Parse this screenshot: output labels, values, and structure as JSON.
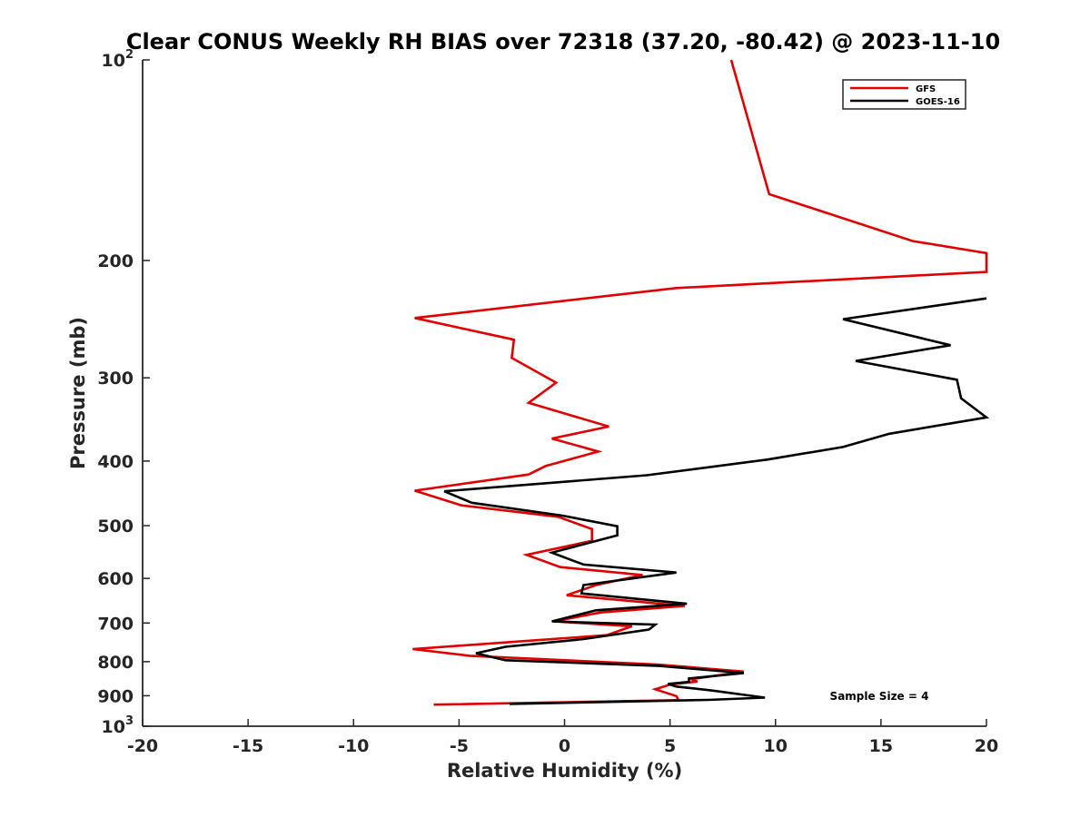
{
  "chart_data": {
    "type": "line",
    "title": "Clear CONUS Weekly RH BIAS over 72318 (37.20, -80.42) @ 2023-11-10",
    "xlabel": "Relative Humidity (%)",
    "ylabel": "Pressure (mb)",
    "xlim": [
      -20,
      20
    ],
    "ylim": [
      100,
      1000
    ],
    "yscale": "log",
    "y_reversed": true,
    "x_ticks": [
      "-20",
      "-15",
      "-10",
      "-5",
      "0",
      "5",
      "10",
      "15",
      "20"
    ],
    "y_ticks": [
      {
        "value": 100,
        "base": "10",
        "exp": "2"
      },
      {
        "value": 200,
        "text": "200"
      },
      {
        "value": 300,
        "text": "300"
      },
      {
        "value": 400,
        "text": "400"
      },
      {
        "value": 500,
        "text": "500"
      },
      {
        "value": 600,
        "text": "600"
      },
      {
        "value": 700,
        "text": "700"
      },
      {
        "value": 800,
        "text": "800"
      },
      {
        "value": 900,
        "text": "900"
      },
      {
        "value": 1000,
        "base": "10",
        "exp": "3"
      }
    ],
    "legend": {
      "placement": "top-right"
    },
    "annotation": "Sample Size = 4",
    "series": [
      {
        "name": "GFS",
        "color": "#e00000",
        "points": [
          [
            7.9,
            100
          ],
          [
            9.7,
            159
          ],
          [
            16.5,
            187
          ],
          [
            20,
            195
          ],
          [
            20,
            208
          ],
          [
            5.3,
            220
          ],
          [
            -7.1,
            244
          ],
          [
            -2.4,
            263
          ],
          [
            -2.5,
            280
          ],
          [
            -0.4,
            305
          ],
          [
            -1.7,
            327
          ],
          [
            2.1,
            355
          ],
          [
            -0.6,
            370
          ],
          [
            1.6,
            387
          ],
          [
            -0.9,
            407
          ],
          [
            -1.7,
            419
          ],
          [
            -7.1,
            443
          ],
          [
            -4.9,
            466
          ],
          [
            -0.3,
            485
          ],
          [
            1.3,
            506
          ],
          [
            1.3,
            527
          ],
          [
            -1.8,
            553
          ],
          [
            -0.2,
            577
          ],
          [
            3.7,
            593
          ],
          [
            1.5,
            614
          ],
          [
            0.1,
            636
          ],
          [
            5.7,
            660
          ],
          [
            1.7,
            675
          ],
          [
            -0.5,
            696
          ],
          [
            3.2,
            708
          ],
          [
            2.0,
            730
          ],
          [
            -1.9,
            745
          ],
          [
            -7.2,
            766
          ],
          [
            -4.5,
            784
          ],
          [
            4.4,
            808
          ],
          [
            8.5,
            828
          ],
          [
            6.0,
            850
          ],
          [
            6.3,
            857
          ],
          [
            5.0,
            866
          ],
          [
            4.3,
            880
          ],
          [
            5.3,
            901
          ],
          [
            5.4,
            914
          ],
          [
            -6.2,
            928
          ]
        ]
      },
      {
        "name": "GOES-16",
        "color": "#000000",
        "points": [
          [
            20,
            228
          ],
          [
            13.2,
            245
          ],
          [
            18.3,
            268
          ],
          [
            13.8,
            283
          ],
          [
            18.6,
            302
          ],
          [
            18.8,
            322
          ],
          [
            20,
            344
          ],
          [
            15.4,
            364
          ],
          [
            13.2,
            381
          ],
          [
            9.6,
            398
          ],
          [
            3.9,
            420
          ],
          [
            -5.7,
            444
          ],
          [
            -4.4,
            462
          ],
          [
            -0.1,
            483
          ],
          [
            2.5,
            501
          ],
          [
            2.5,
            517
          ],
          [
            -0.6,
            549
          ],
          [
            0.9,
            572
          ],
          [
            5.3,
            588
          ],
          [
            0.9,
            614
          ],
          [
            0.8,
            632
          ],
          [
            5.8,
            655
          ],
          [
            1.5,
            670
          ],
          [
            -0.6,
            696
          ],
          [
            4.3,
            704
          ],
          [
            4.0,
            716
          ],
          [
            0.9,
            740
          ],
          [
            -2.8,
            760
          ],
          [
            -4.2,
            777
          ],
          [
            -2.8,
            796
          ],
          [
            4.5,
            812
          ],
          [
            8.5,
            832
          ],
          [
            5.9,
            848
          ],
          [
            5.9,
            858
          ],
          [
            4.9,
            864
          ],
          [
            5.3,
            872
          ],
          [
            7.0,
            884
          ],
          [
            9.5,
            906
          ],
          [
            6.8,
            913
          ],
          [
            -2.6,
            926
          ]
        ]
      }
    ]
  }
}
